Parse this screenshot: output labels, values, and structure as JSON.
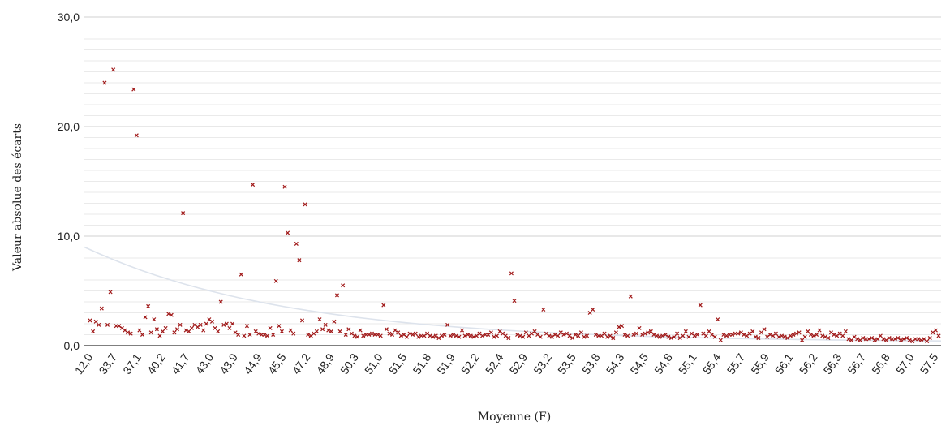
{
  "chart_data": {
    "type": "scatter",
    "title": "",
    "xlabel": "Moyenne (F)",
    "ylabel": "Valeur absolue des écarts",
    "ylim": [
      0,
      30
    ],
    "y_ticks": [
      "0,0",
      "10,0",
      "20,0",
      "30,0"
    ],
    "x_ticks": [
      "12,0",
      "33,7",
      "37,1",
      "40,2",
      "41,7",
      "43,0",
      "43,9",
      "44,9",
      "45,5",
      "47,2",
      "48,9",
      "50,3",
      "51,0",
      "51,5",
      "51,8",
      "51,9",
      "52,2",
      "52,4",
      "52,9",
      "53,2",
      "53,5",
      "53,8",
      "54,3",
      "54,5",
      "54,8",
      "55,1",
      "55,4",
      "55,7",
      "55,9",
      "56,1",
      "56,2",
      "56,3",
      "56,7",
      "56,8",
      "57,0",
      "57,5"
    ],
    "grid": "horizontal, major and minor",
    "marker": "x",
    "colors": {
      "marker": "#a01818",
      "trendline": "#dde3ec",
      "grid": "#e3e3e3",
      "axis": "#333333"
    },
    "trendline": {
      "type": "decreasing curve",
      "start": 9.0,
      "end": 0.3
    },
    "series": [
      {
        "values": [
          2.3,
          1.3,
          2.2,
          1.9,
          3.4,
          24.0,
          1.9,
          4.9,
          25.2,
          1.8,
          1.8,
          1.6,
          1.4,
          1.2,
          1.1,
          23.4,
          19.2,
          1.4,
          1.0,
          2.6,
          3.6,
          1.2,
          2.4,
          1.5,
          0.9,
          1.3,
          1.6,
          2.9,
          2.8,
          1.2,
          1.5,
          1.9,
          12.1,
          1.4,
          1.3,
          1.6,
          1.9,
          1.7,
          1.9,
          1.4,
          2.0,
          2.4,
          2.2,
          1.6,
          1.3,
          4.0,
          1.9,
          2.0,
          1.6,
          2.0,
          1.2,
          1.0,
          6.5,
          0.9,
          1.8,
          1.0,
          14.7,
          1.3,
          1.1,
          1.0,
          1.0,
          0.9,
          1.6,
          1.0,
          5.9,
          1.8,
          1.3,
          14.5,
          10.3,
          1.4,
          1.1,
          9.3,
          7.8,
          2.3,
          12.9,
          1.0,
          0.9,
          1.1,
          1.3,
          2.4,
          1.5,
          1.9,
          1.4,
          1.3,
          2.2,
          4.6,
          1.3,
          5.5,
          1.0,
          1.5,
          1.1,
          0.9,
          0.8,
          1.4,
          0.9,
          1.0,
          1.0,
          1.1,
          1.0,
          1.0,
          0.9,
          3.7,
          1.5,
          1.1,
          1.0,
          1.4,
          1.2,
          0.9,
          1.0,
          0.8,
          1.1,
          1.0,
          1.1,
          0.8,
          0.9,
          0.9,
          1.1,
          0.9,
          0.8,
          0.9,
          0.7,
          0.9,
          1.0,
          1.9,
          0.9,
          1.0,
          0.9,
          0.8,
          1.4,
          0.9,
          1.0,
          0.9,
          0.8,
          0.9,
          1.1,
          0.9,
          1.0,
          1.0,
          1.2,
          0.8,
          0.9,
          1.3,
          1.1,
          0.9,
          0.7,
          6.6,
          4.1,
          1.0,
          0.9,
          0.8,
          1.2,
          0.9,
          1.1,
          1.3,
          1.0,
          0.8,
          3.3,
          1.1,
          0.9,
          0.8,
          1.0,
          0.9,
          1.2,
          1.0,
          1.1,
          0.9,
          0.7,
          1.0,
          0.9,
          1.2,
          0.8,
          0.9,
          3.0,
          3.3,
          1.0,
          0.9,
          0.9,
          1.1,
          0.8,
          0.9,
          0.7,
          1.2,
          1.7,
          1.8,
          1.0,
          0.9,
          4.5,
          1.0,
          1.1,
          1.6,
          1.0,
          1.1,
          1.2,
          1.3,
          1.0,
          0.9,
          0.8,
          0.9,
          1.0,
          0.8,
          0.7,
          0.8,
          1.1,
          0.7,
          0.9,
          1.3,
          0.8,
          1.1,
          0.9,
          1.0,
          3.7,
          1.1,
          0.9,
          1.3,
          1.0,
          0.8,
          2.4,
          0.5,
          1.0,
          0.9,
          1.0,
          1.0,
          1.1,
          1.1,
          1.2,
          1.0,
          0.9,
          1.1,
          1.3,
          0.8,
          0.7,
          1.2,
          1.5,
          0.8,
          1.0,
          0.9,
          1.1,
          0.8,
          0.9,
          0.8,
          0.7,
          0.9,
          1.0,
          1.1,
          1.2,
          0.5,
          0.8,
          1.3,
          1.0,
          0.9,
          1.0,
          1.4,
          0.9,
          0.8,
          0.7,
          1.2,
          1.0,
          0.9,
          1.1,
          0.9,
          1.3,
          0.6,
          0.5,
          0.8,
          0.6,
          0.5,
          0.7,
          0.6,
          0.6,
          0.7,
          0.5,
          0.6,
          0.9,
          0.6,
          0.5,
          0.7,
          0.6,
          0.6,
          0.7,
          0.5,
          0.6,
          0.7,
          0.5,
          0.4,
          0.6,
          0.6,
          0.5,
          0.6,
          0.4,
          0.7,
          1.2,
          1.4,
          0.9
        ]
      }
    ]
  }
}
